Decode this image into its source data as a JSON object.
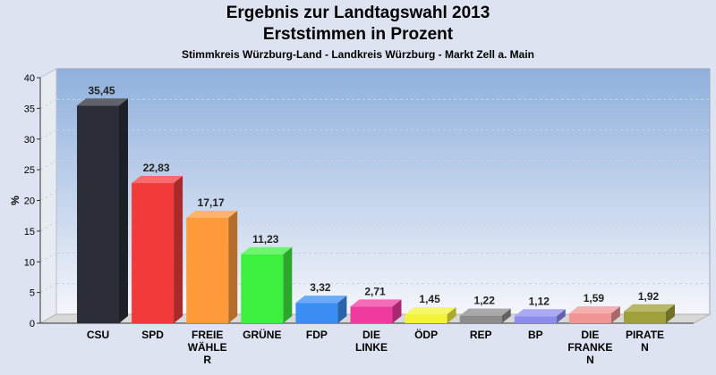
{
  "chart_data": {
    "type": "bar",
    "title": "Ergebnis zur Landtagswahl 2013",
    "subtitle": "Erststimmen in Prozent",
    "caption": "Stimmkreis Würzburg-Land - Landkreis Würzburg - Markt Zell a. Main",
    "ylabel": "%",
    "xlabel": "",
    "ylim": [
      0,
      40
    ],
    "yticks": [
      0,
      5,
      10,
      15,
      20,
      25,
      30,
      35,
      40
    ],
    "grid": true,
    "categories": [
      "CSU",
      "SPD",
      "FREIE WÄHLER",
      "GRÜNE",
      "FDP",
      "DIE LINKE",
      "ÖDP",
      "REP",
      "BP",
      "DIE FRANKEN",
      "PIRATEN"
    ],
    "category_lines": [
      [
        "CSU"
      ],
      [
        "SPD"
      ],
      [
        "FREIE",
        "WÄHLE",
        "R"
      ],
      [
        "GRÜNE"
      ],
      [
        "FDP"
      ],
      [
        "DIE",
        "LINKE"
      ],
      [
        "ÖDP"
      ],
      [
        "REP"
      ],
      [
        "BP"
      ],
      [
        "DIE",
        "FRANKE",
        "N"
      ],
      [
        "PIRATE",
        "N"
      ]
    ],
    "values": [
      35.45,
      22.83,
      17.17,
      11.23,
      3.32,
      2.71,
      1.45,
      1.22,
      1.12,
      1.59,
      1.92
    ],
    "value_labels": [
      "35,45",
      "22,83",
      "17,17",
      "11,23",
      "3,32",
      "2,71",
      "1,45",
      "1,22",
      "1,12",
      "1,59",
      "1,92"
    ],
    "colors": [
      "#2b2e38",
      "#f33a3a",
      "#ff9a3a",
      "#3ef03e",
      "#3a8ef3",
      "#f03aa0",
      "#f3f33a",
      "#8c8c8c",
      "#8c8cf0",
      "#f09494",
      "#a0a03a"
    ]
  }
}
